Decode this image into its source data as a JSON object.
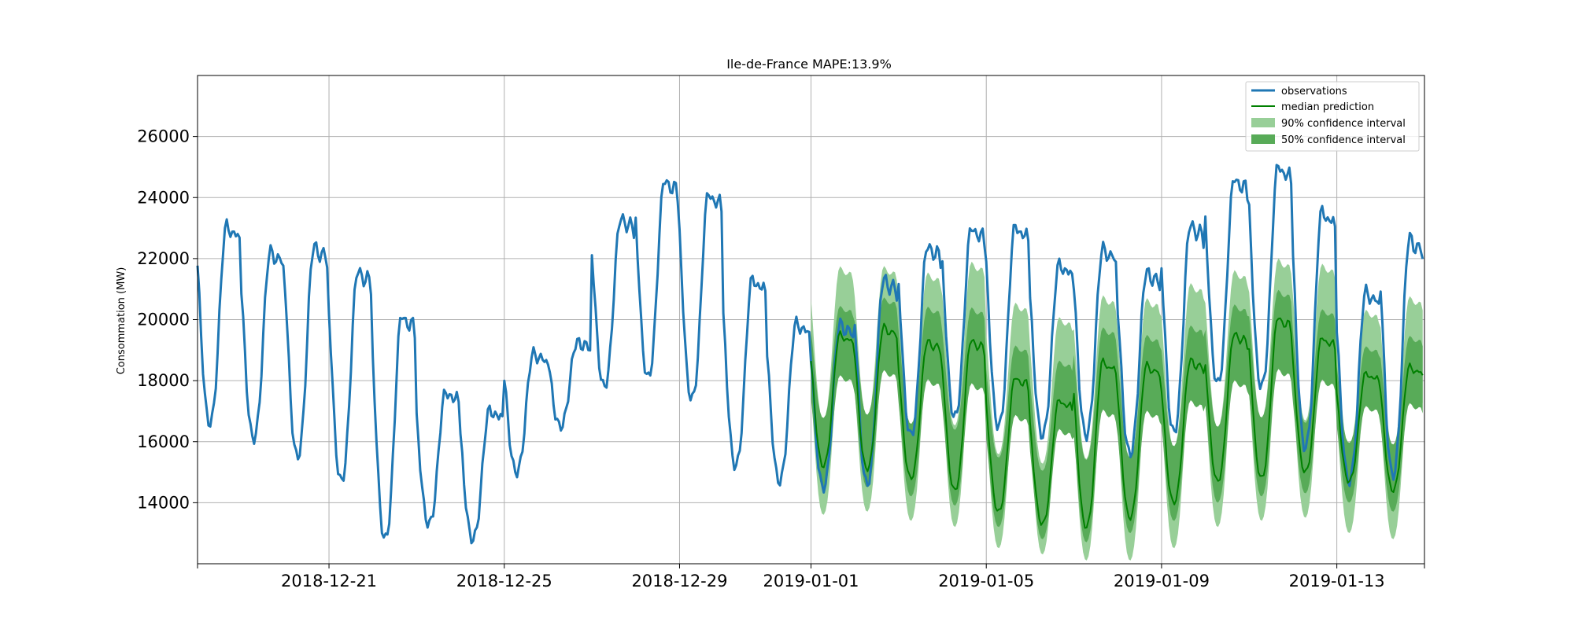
{
  "chart_data": {
    "type": "line",
    "title": "Ile-de-France MAPE:13.9%",
    "xlabel": "",
    "ylabel": "Consommation (MW)",
    "x_range": [
      "2018-12-18",
      "2019-01-15"
    ],
    "ylim": [
      12000,
      28000
    ],
    "x_ticks": [
      "2018-12-21",
      "2018-12-25",
      "2018-12-29",
      "2019-01-01",
      "2019-01-05",
      "2019-01-09",
      "2019-01-13"
    ],
    "y_ticks": [
      14000,
      16000,
      18000,
      20000,
      22000,
      24000,
      26000
    ],
    "grid": true,
    "legend_position": "top-right",
    "series": [
      {
        "name": "observations",
        "kind": "line",
        "color": "#1f77b4",
        "x": [
          "2018-12-18",
          "2018-12-19",
          "2018-12-20",
          "2018-12-21",
          "2018-12-22",
          "2018-12-23",
          "2018-12-24",
          "2018-12-25",
          "2018-12-26",
          "2018-12-27",
          "2018-12-28",
          "2018-12-29",
          "2018-12-30",
          "2018-12-31",
          "2019-01-01",
          "2019-01-02",
          "2019-01-03",
          "2019-01-04",
          "2019-01-05",
          "2019-01-06",
          "2019-01-07",
          "2019-01-08",
          "2019-01-09",
          "2019-01-10",
          "2019-01-11",
          "2019-01-12",
          "2019-01-13",
          "2019-01-14"
        ],
        "daily_min": [
          16600,
          16100,
          15500,
          14700,
          12800,
          13300,
          12800,
          15000,
          16500,
          17800,
          18100,
          17400,
          15200,
          14700,
          14500,
          14600,
          16200,
          16800,
          16500,
          16200,
          16200,
          15600,
          16300,
          17900,
          17800,
          15800,
          14700,
          14900
        ],
        "daily_max": [
          24100,
          23200,
          23500,
          22700,
          21300,
          18300,
          17700,
          19500,
          19700,
          24200,
          25600,
          25200,
          22300,
          20700,
          20700,
          22400,
          23400,
          24000,
          24100,
          22700,
          23300,
          22500,
          24200,
          25700,
          26200,
          24800,
          21900,
          23900
        ]
      },
      {
        "name": "median prediction",
        "kind": "line",
        "color": "#008000",
        "x": [
          "2019-01-01",
          "2019-01-02",
          "2019-01-03",
          "2019-01-04",
          "2019-01-05",
          "2019-01-06",
          "2019-01-07",
          "2019-01-08",
          "2019-01-09",
          "2019-01-10",
          "2019-01-11",
          "2019-01-12",
          "2019-01-13",
          "2019-01-14"
        ],
        "daily_min": [
          15200,
          15100,
          14800,
          14400,
          13700,
          13300,
          13200,
          13500,
          14000,
          14700,
          14800,
          15000,
          14700,
          14400
        ],
        "daily_max": [
          20200,
          20500,
          20000,
          20100,
          18800,
          18000,
          19500,
          19300,
          19400,
          20300,
          20900,
          20100,
          18800,
          19100
        ]
      },
      {
        "name": "90% confidence interval",
        "kind": "band",
        "color": "#98cf98",
        "x": [
          "2019-01-01",
          "2019-01-02",
          "2019-01-03",
          "2019-01-04",
          "2019-01-05",
          "2019-01-06",
          "2019-01-07",
          "2019-01-08",
          "2019-01-09",
          "2019-01-10",
          "2019-01-11",
          "2019-01-12",
          "2019-01-13",
          "2019-01-14"
        ],
        "lower_min": [
          13600,
          13700,
          13400,
          13200,
          12500,
          12300,
          12100,
          12100,
          12500,
          13200,
          13400,
          13500,
          13000,
          12800
        ],
        "upper_max": [
          22500,
          22500,
          22300,
          22700,
          21300,
          20800,
          21600,
          21500,
          22000,
          22400,
          22800,
          22600,
          21000,
          21500
        ]
      },
      {
        "name": "50% confidence interval",
        "kind": "band",
        "color": "#58ab58",
        "x": [
          "2019-01-01",
          "2019-01-02",
          "2019-01-03",
          "2019-01-04",
          "2019-01-05",
          "2019-01-06",
          "2019-01-07",
          "2019-01-08",
          "2019-01-09",
          "2019-01-10",
          "2019-01-11",
          "2019-01-12",
          "2019-01-13",
          "2019-01-14"
        ],
        "lower_min": [
          14500,
          14500,
          14200,
          13900,
          13200,
          12800,
          12700,
          13000,
          13400,
          14000,
          14200,
          14300,
          14000,
          13700
        ],
        "upper_max": [
          21000,
          21300,
          21000,
          21000,
          19700,
          19200,
          20400,
          20100,
          20400,
          21100,
          21600,
          20900,
          19600,
          20000
        ]
      }
    ]
  }
}
